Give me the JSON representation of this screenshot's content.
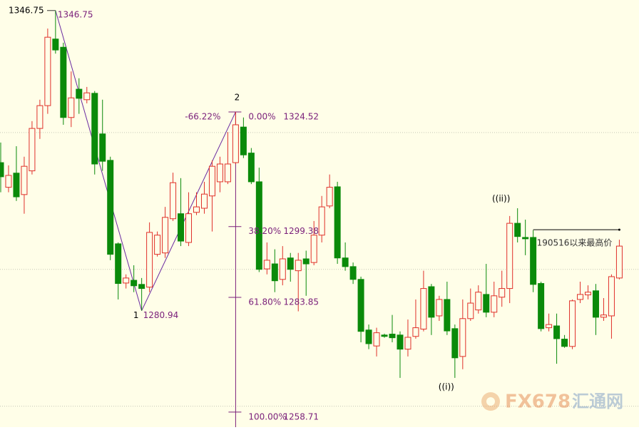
{
  "chart_data": {
    "type": "candlestick",
    "ylim": [
      1255.4,
      1349.06
    ],
    "gridlines": [
      1260,
      1290,
      1320
    ],
    "up_color": "#e0302a",
    "down_color": "#0a8a0a",
    "background": "#fffee8",
    "annotation_color": "#7a1f7a",
    "open": [
      1313.4,
      1308.0,
      1311.1,
      1306.4,
      1311.6,
      1320.9,
      1325.9,
      1340.5,
      1338.7,
      1323.3,
      1329.5,
      1327.2,
      1328.6,
      1319.7,
      1313.9,
      1295.6,
      1287.0,
      1287.6,
      1286.7,
      1286.1,
      1293.3,
      1293.6,
      1301.1,
      1302.2,
      1295.9,
      1302.5,
      1303.4,
      1306.1,
      1309.2,
      1309.2,
      1313.4,
      1321.2,
      1315.5,
      1309.2,
      1290.1,
      1291.2,
      1287.8,
      1292.5,
      1289.7,
      1292.3,
      1291.5,
      1297.5,
      1303.9,
      1308.1,
      1292.5,
      1290.6,
      1287.8,
      1276.7,
      1273.2,
      1275.6,
      1275.8,
      1275.6,
      1272.5,
      1275.3,
      1276.9,
      1286.2,
      1279.8,
      1283.4,
      1277.0,
      1270.9,
      1279.2,
      1281.1,
      1284.5,
      1280.6,
      1283.9,
      1285.8,
      1300.1,
      1297.0,
      1297.0,
      1286.9,
      1277.2,
      1277.6,
      1274.7,
      1273.1,
      1283.4,
      1284.4,
      1285.3,
      1279.5,
      1279.8,
      1288.1
    ],
    "high": [
      1317.8,
      1312.8,
      1317.0,
      1314.7,
      1322.5,
      1327.2,
      1342.8,
      1346.75,
      1339.7,
      1333.4,
      1331.9,
      1330.0,
      1329.1,
      1327.2,
      1314.7,
      1295.9,
      1288.9,
      1290.9,
      1288.1,
      1300.3,
      1298.3,
      1303.7,
      1311.2,
      1310.0,
      1306.9,
      1306.9,
      1309.2,
      1313.9,
      1314.7,
      1320.1,
      1324.52,
      1323.3,
      1316.6,
      1312.3,
      1295.9,
      1294.4,
      1295.1,
      1293.6,
      1293.6,
      1294.1,
      1300.6,
      1306.1,
      1310.8,
      1309.2,
      1295.9,
      1291.5,
      1288.4,
      1277.9,
      1277.2,
      1275.9,
      1280.0,
      1276.4,
      1279.0,
      1283.4,
      1289.7,
      1286.8,
      1284.2,
      1287.3,
      1277.9,
      1283.4,
      1285.8,
      1286.5,
      1291.2,
      1287.3,
      1289.7,
      1301.7,
      1303.4,
      1300.9,
      1298.6,
      1287.3,
      1280.3,
      1280.3,
      1275.6,
      1283.4,
      1287.3,
      1286.5,
      1286.8,
      1283.7,
      1288.9,
      1296.5
    ],
    "low": [
      1306.9,
      1306.9,
      1305.0,
      1302.2,
      1310.8,
      1318.6,
      1324.1,
      1337.3,
      1321.7,
      1321.2,
      1324.1,
      1326.4,
      1310.8,
      1311.6,
      1292.0,
      1283.4,
      1285.8,
      1285.0,
      1280.94,
      1285.0,
      1292.8,
      1292.5,
      1300.6,
      1295.1,
      1295.1,
      1301.9,
      1302.2,
      1298.3,
      1306.9,
      1308.7,
      1313.1,
      1314.4,
      1308.7,
      1289.4,
      1288.9,
      1285.0,
      1286.5,
      1287.3,
      1280.8,
      1284.2,
      1290.9,
      1295.9,
      1303.4,
      1291.2,
      1289.7,
      1286.8,
      1274.0,
      1272.5,
      1270.9,
      1275.0,
      1274.0,
      1266.2,
      1270.9,
      1274.8,
      1276.4,
      1275.6,
      1278.7,
      1275.6,
      1266.2,
      1268.1,
      1278.7,
      1280.3,
      1279.5,
      1279.5,
      1281.8,
      1282.6,
      1295.9,
      1293.1,
      1285.0,
      1276.4,
      1276.4,
      1269.3,
      1272.8,
      1272.5,
      1282.6,
      1283.4,
      1275.6,
      1278.7,
      1274.8,
      1287.8
    ],
    "close": [
      1310.3,
      1310.6,
      1305.9,
      1312.6,
      1320.9,
      1325.9,
      1340.9,
      1338.1,
      1323.3,
      1327.6,
      1327.5,
      1328.7,
      1313.1,
      1313.7,
      1293.3,
      1286.9,
      1288.1,
      1286.4,
      1285.8,
      1298.1,
      1297.5,
      1301.4,
      1309.0,
      1296.2,
      1302.2,
      1303.7,
      1306.5,
      1312.6,
      1313.1,
      1313.1,
      1321.7,
      1315.1,
      1309.2,
      1290.0,
      1292.0,
      1287.5,
      1292.3,
      1290.0,
      1292.0,
      1291.2,
      1297.5,
      1303.7,
      1308.0,
      1292.5,
      1290.6,
      1287.8,
      1276.4,
      1273.7,
      1276.1,
      1275.3,
      1275.0,
      1272.5,
      1275.1,
      1277.2,
      1285.8,
      1279.5,
      1283.4,
      1276.5,
      1270.6,
      1279.2,
      1282.6,
      1285.0,
      1280.6,
      1284.2,
      1285.8,
      1300.1,
      1297.2,
      1296.7,
      1286.7,
      1277.0,
      1277.9,
      1274.8,
      1273.1,
      1283.1,
      1284.5,
      1285.0,
      1279.5,
      1280.0,
      1288.4,
      1295.1
    ],
    "high_marker": "1346.75",
    "wave_points": [
      {
        "index": 7,
        "value": 1346.75,
        "label": "1346.75"
      },
      {
        "index": 18,
        "value": 1280.94,
        "label": "1280.94",
        "wave": "1"
      },
      {
        "index": 30,
        "value": 1324.52,
        "wave": "2"
      }
    ],
    "fibonacci": {
      "index": 30,
      "extension_label": "-66.22%",
      "levels": [
        {
          "ratio": {
            "value": 0,
            "label": "0.00%"
          },
          "price": 1324.52
        },
        {
          "ratio": {
            "value": 38.2,
            "label": "38.20%"
          },
          "price": 1299.38
        },
        {
          "ratio": {
            "value": 61.8,
            "label": "61.80%"
          },
          "price": 1283.85
        },
        {
          "ratio": {
            "value": 100,
            "label": "100.00%"
          },
          "price": 1258.71
        }
      ]
    },
    "wave_labels": [
      {
        "text": "((i))",
        "index": 58
      },
      {
        "text": "((ii))",
        "index": 65
      }
    ],
    "annotation": {
      "text": "190516以来最高价",
      "value": 1298.7,
      "start": 68,
      "end": 79
    },
    "watermark": {
      "brand": "FX678",
      "name": "汇通网"
    }
  }
}
